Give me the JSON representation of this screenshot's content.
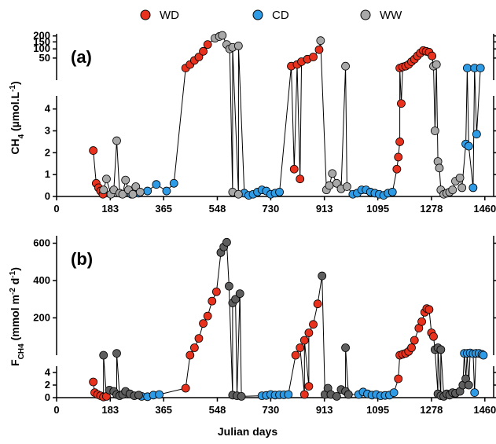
{
  "legend": [
    {
      "label": "WD",
      "color": "#e8321e"
    },
    {
      "label": "CD",
      "color": "#2e9be6"
    },
    {
      "label": "WW",
      "color": "#a8a8a8"
    }
  ],
  "xlabel": "Julian days",
  "chart_data": [
    {
      "type": "scatter",
      "panel": "(a)",
      "ylabel": "CH4 (µmol.L-1)",
      "x_ticks": [
        0,
        183,
        365,
        548,
        730,
        913,
        1095,
        1278,
        1460
      ],
      "xlim": [
        0,
        1490
      ],
      "y_lower": {
        "lim": [
          0,
          4.6
        ],
        "ticks": [
          0,
          1,
          2,
          3,
          4
        ]
      },
      "y_upper": {
        "lim": [
          0,
          220
        ],
        "ticks": [
          50,
          100,
          150,
          200
        ],
        "scale": "sqrt"
      },
      "series": [
        {
          "name": "WD",
          "color": "#e8321e",
          "lower": [
            [
              125,
              2.1
            ],
            [
              135,
              0.6
            ],
            [
              143,
              0.4
            ],
            [
              150,
              0.25
            ],
            [
              158,
              0.1
            ],
            [
              810,
              1.25
            ],
            [
              830,
              0.8
            ],
            [
              1160,
              1.25
            ],
            [
              1165,
              1.8
            ],
            [
              1170,
              2.5
            ],
            [
              1175,
              4.25
            ]
          ],
          "upper": [
            [
              440,
              15
            ],
            [
              455,
              25
            ],
            [
              470,
              40
            ],
            [
              485,
              55
            ],
            [
              500,
              85
            ],
            [
              515,
              130
            ],
            [
              800,
              20
            ],
            [
              820,
              25
            ],
            [
              835,
              35
            ],
            [
              855,
              45
            ],
            [
              875,
              55
            ],
            [
              895,
              95
            ],
            [
              1170,
              15
            ],
            [
              1180,
              18
            ],
            [
              1190,
              20
            ],
            [
              1200,
              25
            ],
            [
              1210,
              35
            ],
            [
              1220,
              45
            ],
            [
              1230,
              60
            ],
            [
              1240,
              75
            ],
            [
              1250,
              90
            ],
            [
              1260,
              85
            ],
            [
              1270,
              80
            ],
            [
              1280,
              60
            ]
          ]
        },
        {
          "name": "CD",
          "color": "#2e9be6",
          "lower": [
            [
              255,
              0.1
            ],
            [
              280,
              0.15
            ],
            [
              310,
              0.25
            ],
            [
              340,
              0.55
            ],
            [
              375,
              0.25
            ],
            [
              400,
              0.6
            ],
            [
              640,
              0.15
            ],
            [
              655,
              0.05
            ],
            [
              670,
              0.1
            ],
            [
              685,
              0.2
            ],
            [
              700,
              0.3
            ],
            [
              715,
              0.25
            ],
            [
              730,
              0.1
            ],
            [
              745,
              0.15
            ],
            [
              760,
              0.2
            ],
            [
              1010,
              0.1
            ],
            [
              1025,
              0.15
            ],
            [
              1040,
              0.3
            ],
            [
              1055,
              0.3
            ],
            [
              1070,
              0.2
            ],
            [
              1085,
              0.15
            ],
            [
              1100,
              0.1
            ],
            [
              1115,
              0.05
            ],
            [
              1130,
              0.15
            ],
            [
              1145,
              0.2
            ],
            [
              1395,
              2.4
            ],
            [
              1405,
              2.3
            ],
            [
              1420,
              0.4
            ],
            [
              1432,
              2.85
            ]
          ],
          "upper": [
            [
              1400,
              15
            ],
            [
              1425,
              15
            ],
            [
              1445,
              15
            ]
          ]
        },
        {
          "name": "WW",
          "color": "#a8a8a8",
          "lower": [
            [
              160,
              0.3
            ],
            [
              170,
              0.8
            ],
            [
              185,
              0.1
            ],
            [
              195,
              0.3
            ],
            [
              205,
              2.55
            ],
            [
              215,
              0.15
            ],
            [
              225,
              0.1
            ],
            [
              235,
              0.75
            ],
            [
              245,
              0.3
            ],
            [
              260,
              0.1
            ],
            [
              270,
              0.45
            ],
            [
              285,
              0.2
            ],
            [
              600,
              0.2
            ],
            [
              620,
              0.1
            ],
            [
              920,
              0.3
            ],
            [
              930,
              0.5
            ],
            [
              940,
              1.05
            ],
            [
              955,
              0.6
            ],
            [
              970,
              0.35
            ],
            [
              990,
              0.45
            ],
            [
              1290,
              3.0
            ],
            [
              1300,
              1.6
            ],
            [
              1305,
              1.3
            ],
            [
              1310,
              0.3
            ],
            [
              1320,
              0.1
            ],
            [
              1330,
              0.15
            ],
            [
              1340,
              0.2
            ],
            [
              1350,
              0.3
            ],
            [
              1360,
              0.7
            ],
            [
              1375,
              0.85
            ],
            [
              1382,
              0.4
            ]
          ],
          "upper": [
            [
              540,
              180
            ],
            [
              555,
              195
            ],
            [
              565,
              205
            ],
            [
              580,
              130
            ],
            [
              590,
              100
            ],
            [
              600,
              110
            ],
            [
              620,
              120
            ],
            [
              900,
              160
            ],
            [
              985,
              20
            ],
            [
              1285,
              20
            ],
            [
              1295,
              25
            ]
          ]
        }
      ]
    },
    {
      "type": "scatter",
      "panel": "(b)",
      "ylabel": "FCH4 (mmol m-2 d-1)",
      "x_ticks": [
        0,
        183,
        365,
        548,
        730,
        913,
        1095,
        1278,
        1460
      ],
      "xlim": [
        0,
        1490
      ],
      "y_lower": {
        "lim": [
          0,
          5
        ],
        "ticks": [
          0,
          2,
          4
        ]
      },
      "y_upper": {
        "lim": [
          0,
          640
        ],
        "ticks": [
          200,
          400,
          600
        ]
      },
      "series": [
        {
          "name": "WD",
          "color": "#e8321e",
          "lower": [
            [
              125,
              2.5
            ],
            [
              130,
              0.8
            ],
            [
              140,
              0.5
            ],
            [
              150,
              0.3
            ],
            [
              160,
              0.1
            ],
            [
              170,
              0.2
            ],
            [
              440,
              1.5
            ],
            [
              845,
              0.5
            ],
            [
              860,
              1.8
            ],
            [
              1165,
              3.0
            ]
          ],
          "upper": [
            [
              455,
              0
            ],
            [
              470,
              40
            ],
            [
              485,
              90
            ],
            [
              500,
              170
            ],
            [
              515,
              210
            ],
            [
              530,
              290
            ],
            [
              545,
              340
            ],
            [
              815,
              0
            ],
            [
              830,
              40
            ],
            [
              845,
              80
            ],
            [
              860,
              120
            ],
            [
              875,
              165
            ],
            [
              890,
              275
            ],
            [
              1170,
              0
            ],
            [
              1180,
              5
            ],
            [
              1190,
              10
            ],
            [
              1200,
              20
            ],
            [
              1210,
              40
            ],
            [
              1220,
              80
            ],
            [
              1235,
              145
            ],
            [
              1245,
              180
            ],
            [
              1255,
              230
            ],
            [
              1262,
              250
            ],
            [
              1270,
              245
            ],
            [
              1278,
              120
            ],
            [
              1285,
              100
            ]
          ]
        },
        {
          "name": "CD",
          "color": "#2e9be6",
          "lower": [
            [
              290,
              0.2
            ],
            [
              310,
              0.15
            ],
            [
              330,
              0.4
            ],
            [
              350,
              0.5
            ],
            [
              700,
              0.3
            ],
            [
              715,
              0.35
            ],
            [
              730,
              0.5
            ],
            [
              745,
              0.4
            ],
            [
              760,
              0.45
            ],
            [
              775,
              0.45
            ],
            [
              790,
              0.5
            ],
            [
              1030,
              0.5
            ],
            [
              1045,
              0.9
            ],
            [
              1060,
              0.6
            ],
            [
              1075,
              0.4
            ],
            [
              1090,
              0.5
            ],
            [
              1105,
              0.3
            ],
            [
              1120,
              0.35
            ],
            [
              1135,
              0.4
            ],
            [
              1150,
              0.8
            ],
            [
              1425,
              0.8
            ]
          ],
          "upper": [
            [
              1390,
              10
            ],
            [
              1400,
              10
            ],
            [
              1410,
              12
            ],
            [
              1420,
              8
            ],
            [
              1430,
              10
            ],
            [
              1440,
              10
            ],
            [
              1450,
              5
            ],
            [
              1455,
              0
            ]
          ]
        },
        {
          "name": "WW",
          "color": "#5e5e5e",
          "lower": [
            [
              180,
              1.2
            ],
            [
              195,
              1.0
            ],
            [
              205,
              0.5
            ],
            [
              215,
              0.3
            ],
            [
              225,
              0.5
            ],
            [
              235,
              1.0
            ],
            [
              250,
              0.6
            ],
            [
              265,
              0.3
            ],
            [
              280,
              0.4
            ],
            [
              600,
              0.4
            ],
            [
              615,
              0.3
            ],
            [
              630,
              0.2
            ],
            [
              915,
              0.5
            ],
            [
              925,
              1.5
            ],
            [
              935,
              0.5
            ],
            [
              955,
              0.2
            ],
            [
              970,
              1.3
            ],
            [
              985,
              1.0
            ],
            [
              995,
              0.5
            ],
            [
              1300,
              0.6
            ],
            [
              1310,
              0.3
            ],
            [
              1320,
              0.2
            ],
            [
              1330,
              0.6
            ],
            [
              1340,
              0.4
            ],
            [
              1350,
              0.8
            ],
            [
              1360,
              0.7
            ],
            [
              1375,
              1.0
            ],
            [
              1385,
              2.0
            ],
            [
              1395,
              3.0
            ],
            [
              1405,
              2.0
            ]
          ],
          "upper": [
            [
              160,
              0
            ],
            [
              205,
              10
            ],
            [
              560,
              550
            ],
            [
              570,
              580
            ],
            [
              580,
              605
            ],
            [
              588,
              370
            ],
            [
              600,
              280
            ],
            [
              610,
              300
            ],
            [
              625,
              330
            ],
            [
              905,
              425
            ],
            [
              985,
              40
            ],
            [
              1290,
              30
            ],
            [
              1300,
              40
            ],
            [
              1310,
              30
            ]
          ]
        }
      ]
    }
  ]
}
